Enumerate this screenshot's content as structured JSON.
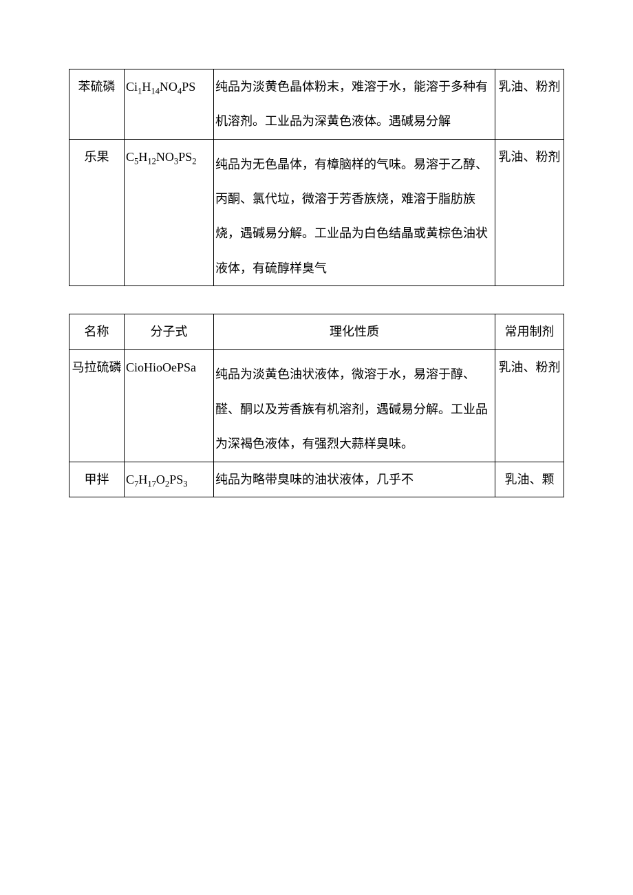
{
  "table1": {
    "rows": [
      {
        "name": "苯硫磷",
        "formula_html": "Ci<sub>1</sub>H<sub>14</sub>NO<sub>4</sub>PS",
        "properties": "纯品为淡黄色晶体粉末，难溶于水，能溶于多种有机溶剂。工业品为深黄色液体。遇碱易分解",
        "formulation": "乳油、粉剂"
      },
      {
        "name": "乐果",
        "formula_html": "C<sub>5</sub>H<sub>12</sub>NO<sub>3</sub>PS<sub>2</sub>",
        "properties": "纯品为无色晶体，有樟脑样的气味。易溶于乙醇、丙酮、氯代垃，微溶于芳香族烧，难溶于脂肪族烧，遇碱易分解。工业品为白色结晶或黄棕色油状液体，有硫醇样臭气",
        "formulation": "乳油、粉剂"
      }
    ]
  },
  "table2": {
    "headers": {
      "name": "名称",
      "formula": "分子式",
      "properties": "理化性质",
      "formulation": "常用制剂"
    },
    "rows": [
      {
        "name": "马拉硫磷",
        "formula_html": "CioHioOePSa",
        "properties": "纯品为淡黄色油状液体，微溶于水，易溶于醇、醛、酮以及芳香族有机溶剂，遇碱易分解。工业品为深褐色液体，有强烈大蒜样臭味。",
        "formulation": "乳油、粉剂"
      },
      {
        "name": "甲拌",
        "formula_html": "C<sub>7</sub>H<sub>17</sub>O<sub>2</sub>PS<sub>3</sub>",
        "properties": "纯品为略带臭味的油状液体，几乎不",
        "formulation": "乳油、颗"
      }
    ]
  }
}
